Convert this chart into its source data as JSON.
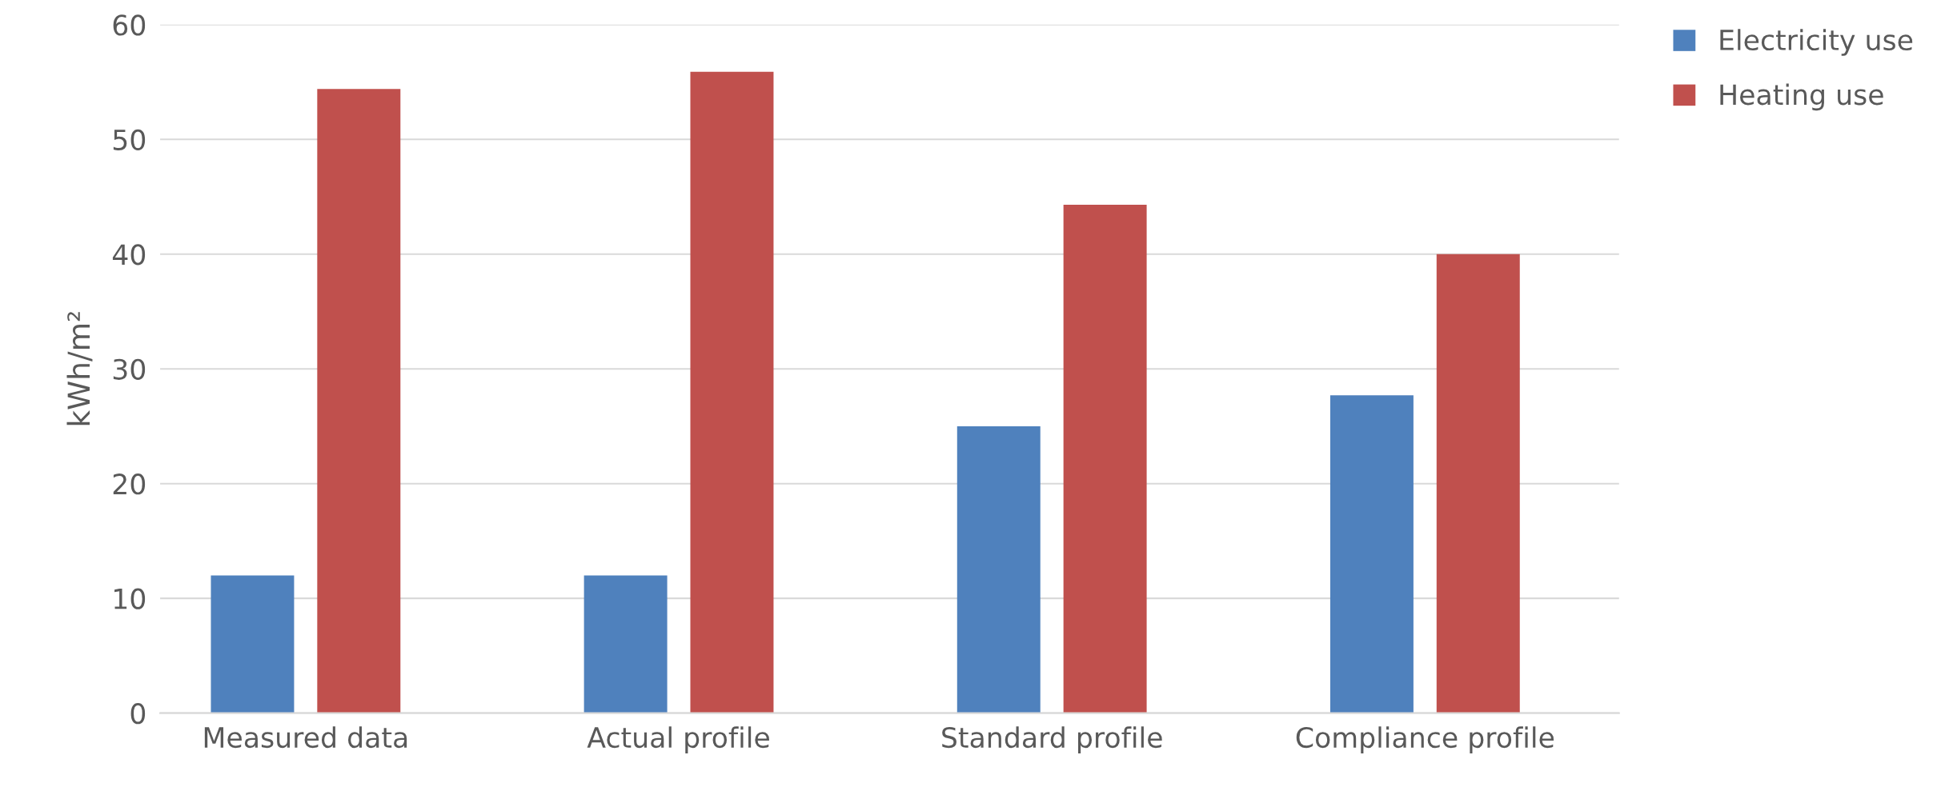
{
  "chart_data": {
    "type": "bar",
    "ylabel": "kWh/m²",
    "categories": [
      "Measured data",
      "Actual profile",
      "Standard profile",
      "Compliance profile"
    ],
    "series": [
      {
        "name": "Electricity use",
        "color": "#4f81bd",
        "values": [
          12,
          12,
          25,
          27.7
        ]
      },
      {
        "name": "Heating use",
        "color": "#c0504d",
        "values": [
          54.4,
          55.9,
          44.3,
          40
        ]
      }
    ],
    "ylim": [
      0,
      60
    ],
    "yticks": [
      0,
      10,
      20,
      30,
      40,
      50,
      60
    ],
    "grid": "y",
    "legend": "top right"
  }
}
